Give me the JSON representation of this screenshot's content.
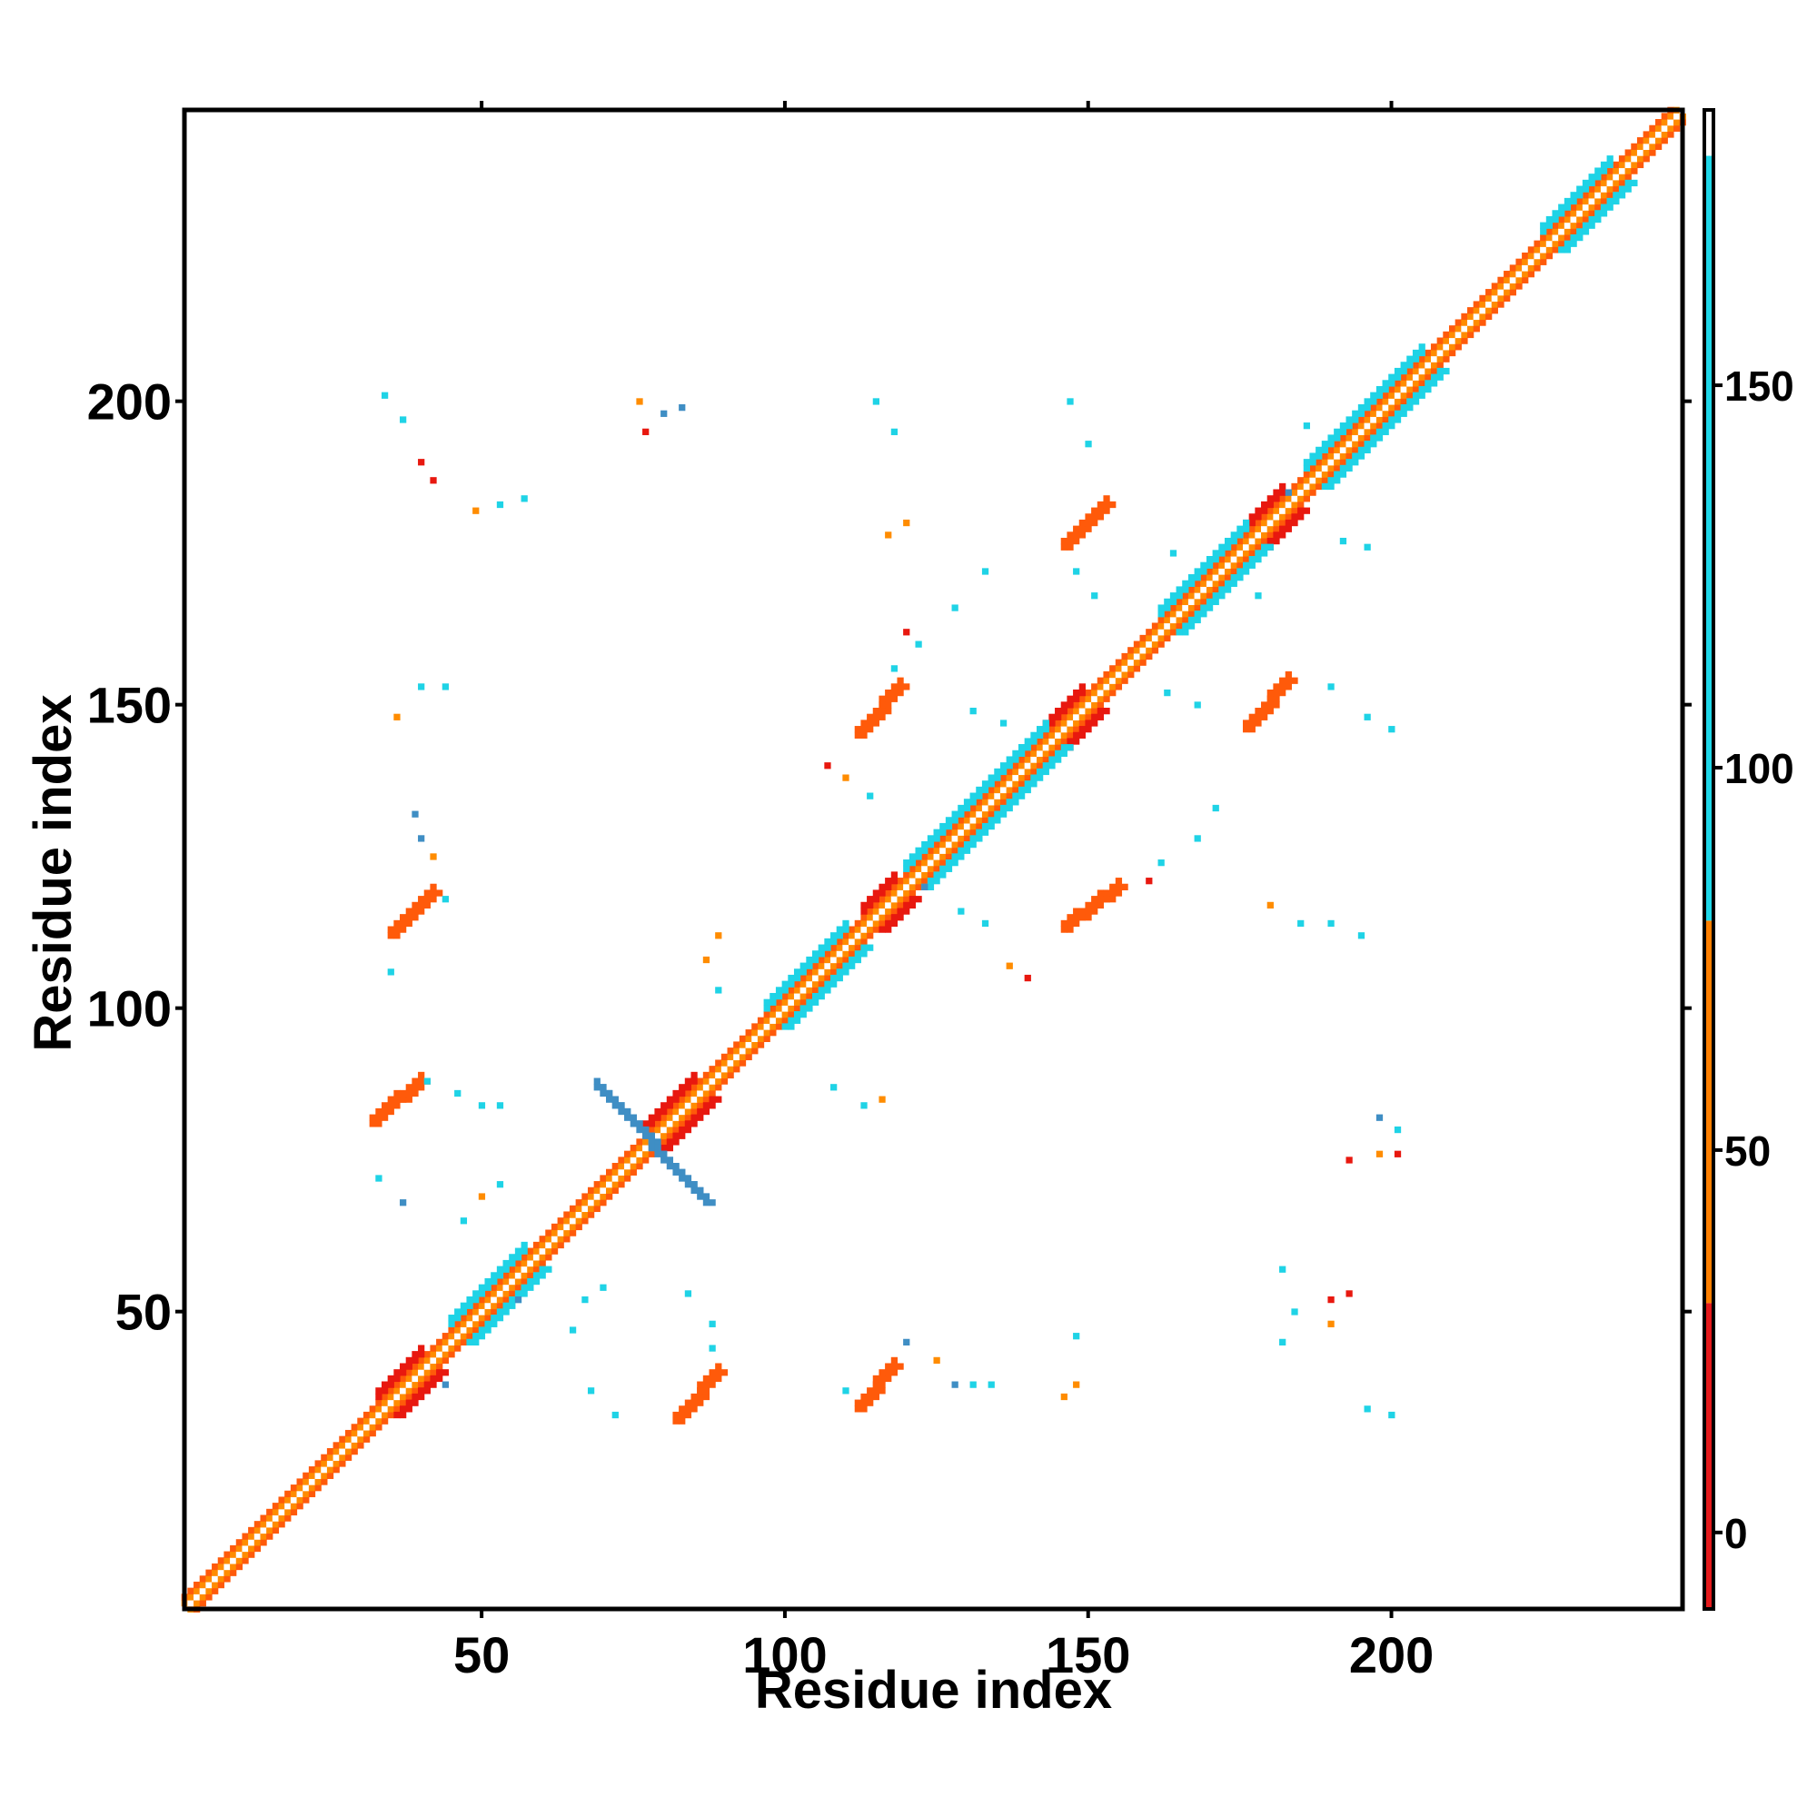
{
  "chart_data": {
    "type": "heatmap",
    "title": "",
    "xlabel": "Residue index",
    "ylabel": "Residue index",
    "xlim": [
      1,
      248
    ],
    "ylim": [
      1,
      248
    ],
    "x_ticks": [
      "50",
      "100",
      "150",
      "200"
    ],
    "y_ticks": [
      "50",
      "100",
      "150",
      "200"
    ],
    "x_tick_values": [
      50,
      100,
      150,
      200
    ],
    "y_tick_values": [
      50,
      100,
      150,
      200
    ],
    "colorbar": {
      "range": [
        -10,
        186
      ],
      "ticks": [
        "0",
        "50",
        "100",
        "150"
      ],
      "tick_values": [
        0,
        50,
        100,
        150
      ],
      "bands": [
        {
          "from": -10,
          "to": 30,
          "color": "#e41a1c"
        },
        {
          "from": 30,
          "to": 80,
          "color": "#ff7f00"
        },
        {
          "from": 80,
          "to": 180,
          "color": "#1fd7e8"
        },
        {
          "from": 180,
          "to": 186,
          "color": "#ffffff"
        }
      ]
    },
    "colors": {
      "red": "#e8180f",
      "dark_orange": "#ff5a0a",
      "orange": "#ff8c00",
      "cyan": "#1fd3e6",
      "steel_blue": "#3f8ec4"
    },
    "main_diagonal": {
      "from": 1,
      "to": 248
    },
    "segments": [
      {
        "x0": 77,
        "y0": 77,
        "x1": 85,
        "y1": 85,
        "color": "red"
      },
      {
        "x0": 33,
        "y0": 33,
        "x1": 40,
        "y1": 40,
        "color": "red"
      },
      {
        "x0": 113,
        "y0": 113,
        "x1": 118,
        "y1": 118,
        "color": "red"
      },
      {
        "x0": 143,
        "y0": 143,
        "x1": 149,
        "y1": 149,
        "color": "red"
      },
      {
        "x0": 176,
        "y0": 176,
        "x1": 182,
        "y1": 182,
        "color": "red"
      },
      {
        "x0": 186,
        "y0": 186,
        "x1": 205,
        "y1": 205,
        "color": "cyan"
      },
      {
        "x0": 225,
        "y0": 225,
        "x1": 236,
        "y1": 236,
        "color": "cyan"
      },
      {
        "x0": 120,
        "y0": 120,
        "x1": 143,
        "y1": 143,
        "color": "cyan"
      },
      {
        "x0": 97,
        "y0": 97,
        "x1": 110,
        "y1": 110,
        "color": "cyan"
      },
      {
        "x0": 162,
        "y0": 162,
        "x1": 176,
        "y1": 176,
        "color": "cyan"
      },
      {
        "x0": 45,
        "y0": 45,
        "x1": 57,
        "y1": 57,
        "color": "cyan"
      },
      {
        "x0": 69,
        "y0": 87,
        "x1": 87,
        "y1": 68,
        "color": "steel_blue"
      },
      {
        "x0": 32,
        "y0": 81,
        "x1": 40,
        "y1": 88,
        "color": "dark_orange"
      },
      {
        "x0": 35,
        "y0": 112,
        "x1": 42,
        "y1": 119,
        "color": "dark_orange"
      },
      {
        "x0": 82,
        "y0": 32,
        "x1": 89,
        "y1": 40,
        "color": "dark_orange"
      },
      {
        "x0": 112,
        "y0": 34,
        "x1": 118,
        "y1": 41,
        "color": "dark_orange"
      },
      {
        "x0": 112,
        "y0": 145,
        "x1": 119,
        "y1": 153,
        "color": "dark_orange"
      },
      {
        "x0": 146,
        "y0": 113,
        "x1": 155,
        "y1": 120,
        "color": "dark_orange"
      },
      {
        "x0": 146,
        "y0": 176,
        "x1": 153,
        "y1": 183,
        "color": "dark_orange"
      },
      {
        "x0": 176,
        "y0": 146,
        "x1": 183,
        "y1": 154,
        "color": "dark_orange"
      }
    ],
    "scatter_points": [
      {
        "x": 40,
        "y": 190,
        "color": "red"
      },
      {
        "x": 42,
        "y": 187,
        "color": "red"
      },
      {
        "x": 49,
        "y": 182,
        "color": "orange"
      },
      {
        "x": 53,
        "y": 183,
        "color": "cyan"
      },
      {
        "x": 57,
        "y": 184,
        "color": "cyan"
      },
      {
        "x": 34,
        "y": 201,
        "color": "cyan"
      },
      {
        "x": 37,
        "y": 197,
        "color": "cyan"
      },
      {
        "x": 76,
        "y": 200,
        "color": "orange"
      },
      {
        "x": 77,
        "y": 195,
        "color": "red"
      },
      {
        "x": 80,
        "y": 198,
        "color": "steel_blue"
      },
      {
        "x": 83,
        "y": 199,
        "color": "steel_blue"
      },
      {
        "x": 115,
        "y": 200,
        "color": "cyan"
      },
      {
        "x": 118,
        "y": 195,
        "color": "cyan"
      },
      {
        "x": 117,
        "y": 178,
        "color": "orange"
      },
      {
        "x": 120,
        "y": 180,
        "color": "orange"
      },
      {
        "x": 147,
        "y": 200,
        "color": "cyan"
      },
      {
        "x": 150,
        "y": 193,
        "color": "cyan"
      },
      {
        "x": 186,
        "y": 196,
        "color": "cyan"
      },
      {
        "x": 192,
        "y": 177,
        "color": "cyan"
      },
      {
        "x": 196,
        "y": 176,
        "color": "cyan"
      },
      {
        "x": 167,
        "y": 170,
        "color": "cyan"
      },
      {
        "x": 148,
        "y": 172,
        "color": "cyan"
      },
      {
        "x": 151,
        "y": 168,
        "color": "cyan"
      },
      {
        "x": 133,
        "y": 172,
        "color": "cyan"
      },
      {
        "x": 128,
        "y": 166,
        "color": "cyan"
      },
      {
        "x": 122,
        "y": 160,
        "color": "cyan"
      },
      {
        "x": 118,
        "y": 156,
        "color": "cyan"
      },
      {
        "x": 120,
        "y": 162,
        "color": "red"
      },
      {
        "x": 107,
        "y": 140,
        "color": "red"
      },
      {
        "x": 110,
        "y": 138,
        "color": "orange"
      },
      {
        "x": 114,
        "y": 135,
        "color": "cyan"
      },
      {
        "x": 131,
        "y": 149,
        "color": "cyan"
      },
      {
        "x": 136,
        "y": 147,
        "color": "cyan"
      },
      {
        "x": 139,
        "y": 143,
        "color": "cyan"
      },
      {
        "x": 162,
        "y": 124,
        "color": "cyan"
      },
      {
        "x": 168,
        "y": 128,
        "color": "cyan"
      },
      {
        "x": 171,
        "y": 133,
        "color": "cyan"
      },
      {
        "x": 160,
        "y": 121,
        "color": "red"
      },
      {
        "x": 180,
        "y": 117,
        "color": "orange"
      },
      {
        "x": 185,
        "y": 114,
        "color": "cyan"
      },
      {
        "x": 190,
        "y": 114,
        "color": "cyan"
      },
      {
        "x": 195,
        "y": 112,
        "color": "cyan"
      },
      {
        "x": 137,
        "y": 107,
        "color": "orange"
      },
      {
        "x": 140,
        "y": 105,
        "color": "red"
      },
      {
        "x": 133,
        "y": 114,
        "color": "cyan"
      },
      {
        "x": 129,
        "y": 116,
        "color": "cyan"
      },
      {
        "x": 163,
        "y": 152,
        "color": "cyan"
      },
      {
        "x": 168,
        "y": 150,
        "color": "cyan"
      },
      {
        "x": 190,
        "y": 153,
        "color": "cyan"
      },
      {
        "x": 196,
        "y": 148,
        "color": "cyan"
      },
      {
        "x": 200,
        "y": 146,
        "color": "cyan"
      },
      {
        "x": 40,
        "y": 153,
        "color": "cyan"
      },
      {
        "x": 44,
        "y": 153,
        "color": "cyan"
      },
      {
        "x": 36,
        "y": 148,
        "color": "orange"
      },
      {
        "x": 39,
        "y": 132,
        "color": "steel_blue"
      },
      {
        "x": 40,
        "y": 128,
        "color": "steel_blue"
      },
      {
        "x": 42,
        "y": 125,
        "color": "orange"
      },
      {
        "x": 44,
        "y": 118,
        "color": "cyan"
      },
      {
        "x": 35,
        "y": 106,
        "color": "cyan"
      },
      {
        "x": 41,
        "y": 88,
        "color": "cyan"
      },
      {
        "x": 46,
        "y": 86,
        "color": "cyan"
      },
      {
        "x": 50,
        "y": 84,
        "color": "cyan"
      },
      {
        "x": 53,
        "y": 84,
        "color": "cyan"
      },
      {
        "x": 33,
        "y": 72,
        "color": "cyan"
      },
      {
        "x": 37,
        "y": 68,
        "color": "steel_blue"
      },
      {
        "x": 47,
        "y": 65,
        "color": "cyan"
      },
      {
        "x": 50,
        "y": 69,
        "color": "orange"
      },
      {
        "x": 53,
        "y": 71,
        "color": "cyan"
      },
      {
        "x": 70,
        "y": 54,
        "color": "cyan"
      },
      {
        "x": 67,
        "y": 52,
        "color": "cyan"
      },
      {
        "x": 65,
        "y": 47,
        "color": "cyan"
      },
      {
        "x": 84,
        "y": 53,
        "color": "cyan"
      },
      {
        "x": 88,
        "y": 48,
        "color": "cyan"
      },
      {
        "x": 88,
        "y": 44,
        "color": "cyan"
      },
      {
        "x": 89,
        "y": 112,
        "color": "orange"
      },
      {
        "x": 87,
        "y": 108,
        "color": "orange"
      },
      {
        "x": 89,
        "y": 103,
        "color": "cyan"
      },
      {
        "x": 108,
        "y": 87,
        "color": "cyan"
      },
      {
        "x": 113,
        "y": 84,
        "color": "cyan"
      },
      {
        "x": 116,
        "y": 85,
        "color": "orange"
      },
      {
        "x": 68,
        "y": 37,
        "color": "cyan"
      },
      {
        "x": 72,
        "y": 33,
        "color": "cyan"
      },
      {
        "x": 110,
        "y": 37,
        "color": "cyan"
      },
      {
        "x": 120,
        "y": 45,
        "color": "steel_blue"
      },
      {
        "x": 125,
        "y": 42,
        "color": "orange"
      },
      {
        "x": 128,
        "y": 38,
        "color": "steel_blue"
      },
      {
        "x": 131,
        "y": 38,
        "color": "cyan"
      },
      {
        "x": 134,
        "y": 38,
        "color": "cyan"
      },
      {
        "x": 148,
        "y": 46,
        "color": "cyan"
      },
      {
        "x": 148,
        "y": 38,
        "color": "orange"
      },
      {
        "x": 146,
        "y": 36,
        "color": "orange"
      },
      {
        "x": 182,
        "y": 57,
        "color": "cyan"
      },
      {
        "x": 184,
        "y": 50,
        "color": "cyan"
      },
      {
        "x": 182,
        "y": 45,
        "color": "cyan"
      },
      {
        "x": 190,
        "y": 52,
        "color": "red"
      },
      {
        "x": 193,
        "y": 53,
        "color": "red"
      },
      {
        "x": 190,
        "y": 48,
        "color": "orange"
      },
      {
        "x": 196,
        "y": 34,
        "color": "cyan"
      },
      {
        "x": 200,
        "y": 33,
        "color": "cyan"
      },
      {
        "x": 198,
        "y": 82,
        "color": "steel_blue"
      },
      {
        "x": 201,
        "y": 80,
        "color": "cyan"
      },
      {
        "x": 193,
        "y": 75,
        "color": "red"
      },
      {
        "x": 198,
        "y": 76,
        "color": "orange"
      },
      {
        "x": 201,
        "y": 76,
        "color": "red"
      },
      {
        "x": 56,
        "y": 52,
        "color": "steel_blue"
      },
      {
        "x": 44,
        "y": 38,
        "color": "steel_blue"
      },
      {
        "x": 123,
        "y": 120,
        "color": "steel_blue"
      },
      {
        "x": 183,
        "y": 185,
        "color": "steel_blue"
      },
      {
        "x": 164,
        "y": 175,
        "color": "cyan"
      },
      {
        "x": 178,
        "y": 168,
        "color": "cyan"
      }
    ]
  }
}
